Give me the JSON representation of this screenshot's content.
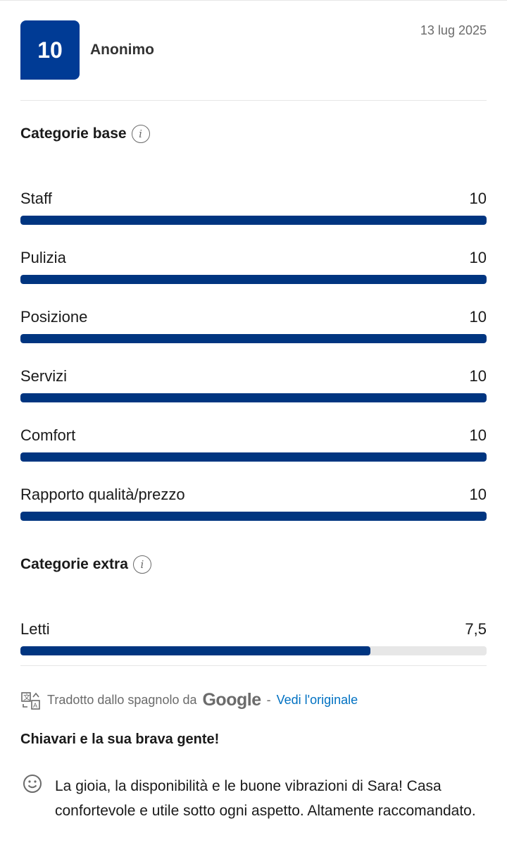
{
  "review": {
    "score": "10",
    "author": "Anonimo",
    "date": "13 lug 2025"
  },
  "base": {
    "heading": "Categorie base",
    "icon": "info-icon",
    "items": [
      {
        "label": "Staff",
        "value": "10",
        "fraction": 1.0
      },
      {
        "label": "Pulizia",
        "value": "10",
        "fraction": 1.0
      },
      {
        "label": "Posizione",
        "value": "10",
        "fraction": 1.0
      },
      {
        "label": "Servizi",
        "value": "10",
        "fraction": 1.0
      },
      {
        "label": "Comfort",
        "value": "10",
        "fraction": 1.0
      },
      {
        "label": "Rapporto qualità/prezzo",
        "value": "10",
        "fraction": 1.0
      }
    ]
  },
  "extra": {
    "heading": "Categorie extra",
    "icon": "info-icon",
    "items": [
      {
        "label": "Letti",
        "value": "7,5",
        "fraction": 0.75
      }
    ]
  },
  "translation": {
    "text": "Tradotto dallo spagnolo da",
    "brand": "Google",
    "separator": "-",
    "link": "Vedi l'originale"
  },
  "content": {
    "title": "Chiavari e la sua brava gente!",
    "positive": "La gioia, la disponibilità e le buone vibrazioni di Sara! Casa confortevole e utile sotto ogni aspetto. Altamente raccomandato."
  },
  "colors": {
    "accent": "#003580",
    "link": "#0071c2"
  }
}
